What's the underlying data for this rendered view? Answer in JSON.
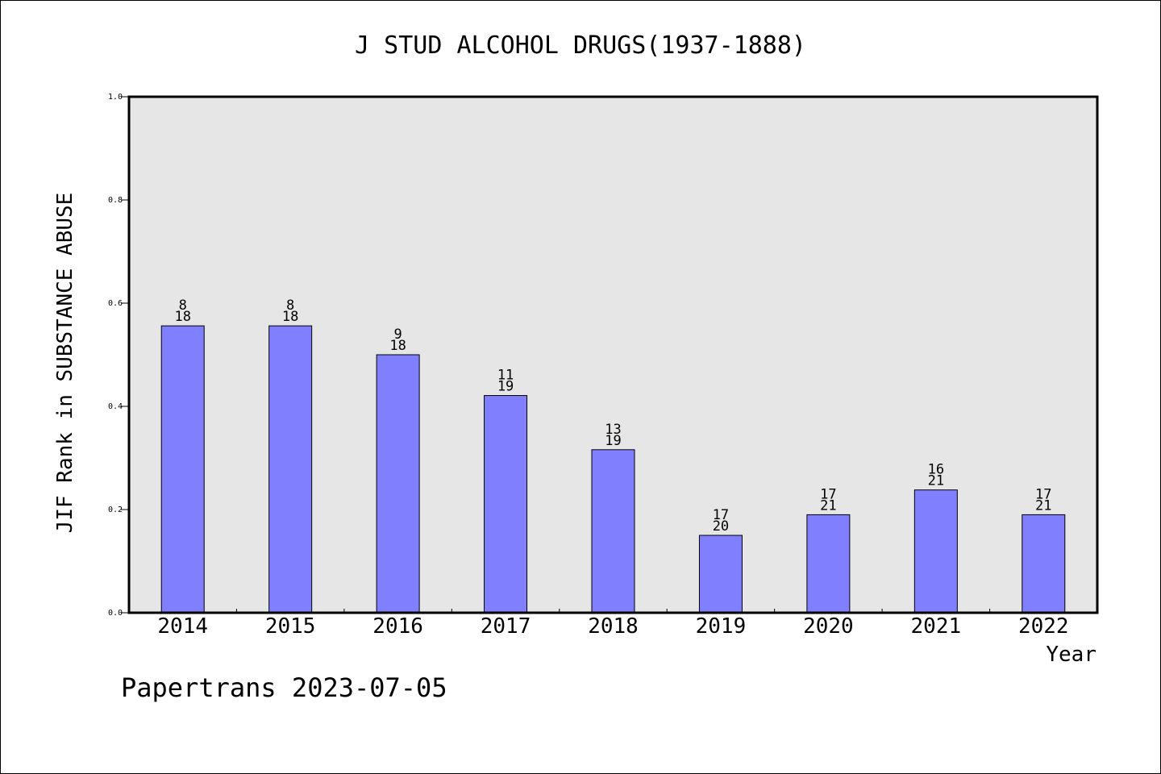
{
  "chart_data": {
    "type": "bar",
    "title": "J STUD ALCOHOL DRUGS(1937-1888)",
    "ylabel": "JIF Rank in SUBSTANCE ABUSE",
    "xlabel": "Year",
    "ylim": [
      0,
      1.0
    ],
    "yticks": [
      "0.0",
      "0.2",
      "0.4",
      "0.6",
      "0.8",
      "1.0"
    ],
    "grid": false,
    "categories": [
      "2014",
      "2015",
      "2016",
      "2017",
      "2018",
      "2019",
      "2020",
      "2021",
      "2022"
    ],
    "values": [
      0.556,
      0.556,
      0.5,
      0.421,
      0.316,
      0.15,
      0.19,
      0.238,
      0.19
    ],
    "ranks": [
      "8",
      "8",
      "9",
      "11",
      "13",
      "17",
      "17",
      "16",
      "17"
    ],
    "totals": [
      "18",
      "18",
      "18",
      "19",
      "19",
      "20",
      "21",
      "21",
      "21"
    ],
    "colors": {
      "bar": "#8080ff",
      "plot_background": "#e6e6e6",
      "axis": "#000000"
    }
  },
  "footer": {
    "watermark": "Papertrans 2023-07-05"
  }
}
